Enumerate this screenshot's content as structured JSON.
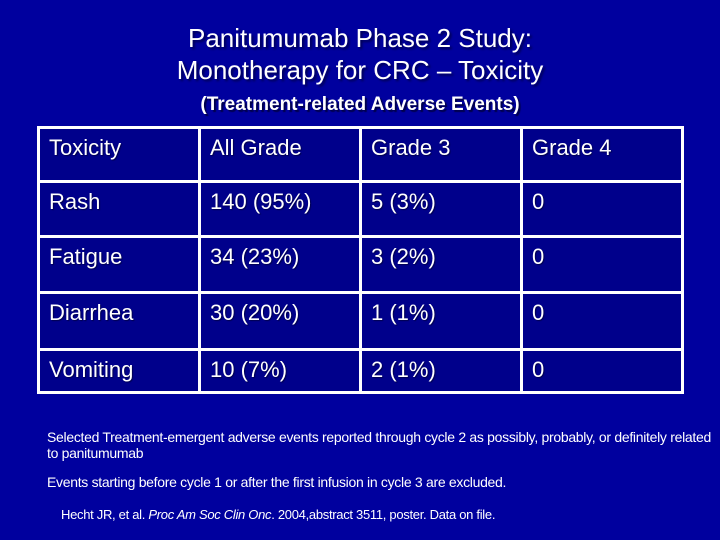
{
  "slide": {
    "title_line1": "Panitumumab Phase 2 Study:",
    "title_line2": "Monotherapy for CRC – Toxicity",
    "subtitle": "(Treatment-related Adverse Events)"
  },
  "table": {
    "headers": [
      "Toxicity",
      "All Grade",
      "Grade 3",
      "Grade 4"
    ],
    "rows": [
      [
        "Rash",
        "140 (95%)",
        "5 (3%)",
        "0"
      ],
      [
        "Fatigue",
        "34 (23%)",
        "3 (2%)",
        "0"
      ],
      [
        "Diarrhea",
        "30 (20%)",
        "1 (1%)",
        "0"
      ],
      [
        "Vomiting",
        "10 (7%)",
        "2 (1%)",
        "0"
      ]
    ]
  },
  "footnotes": {
    "note1": "Selected Treatment-emergent adverse events reported through cycle 2 as possibly, probably, or definitely related to panitumumab",
    "note2": "Events starting before cycle 1 or after the first infusion in cycle 3 are excluded.",
    "citation_prefix": "Hecht JR, et al. ",
    "citation_journal": "Proc Am Soc Clin Onc",
    "citation_suffix": ". 2004,abstract 3511, poster. Data on file."
  },
  "colors": {
    "slide_background": "#00009E",
    "table_cell_background": "#00008B",
    "table_border": "#FFFFFF",
    "text": "#FFFFFF"
  }
}
